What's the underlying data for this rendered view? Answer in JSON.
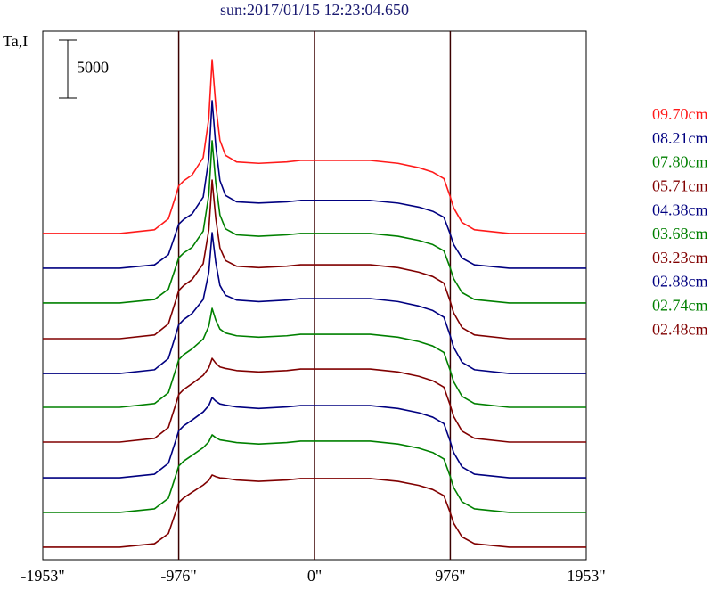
{
  "chart_data": {
    "type": "line",
    "title": "sun:2017/01/15 12:23:04.650",
    "y_label": "Ta,I",
    "scale_bar": 5000,
    "legend": "right",
    "grid": true,
    "xlim": [
      -1953,
      1953
    ],
    "ylim": [
      0,
      45600
    ],
    "xticks": [
      {
        "value": -1953,
        "label": "-1953\""
      },
      {
        "value": -976,
        "label": "-976\""
      },
      {
        "value": 0,
        "label": "0\""
      },
      {
        "value": 976,
        "label": "976\""
      },
      {
        "value": 1953,
        "label": "1953\""
      }
    ],
    "x": [
      -1953,
      -1400,
      -1150,
      -1050,
      -1000,
      -976,
      -940,
      -880,
      -800,
      -760,
      -736,
      -710,
      -680,
      -640,
      -560,
      -400,
      -200,
      -100,
      0,
      100,
      200,
      400,
      600,
      750,
      850,
      930,
      976,
      1000,
      1060,
      1150,
      1400,
      1953
    ],
    "series": [
      {
        "name": "09.70cm",
        "color": "#ff1a1a",
        "values": [
          28150,
          28150,
          28470,
          29410,
          31300,
          32250,
          32690,
          33190,
          34690,
          38050,
          43140,
          39230,
          36190,
          34890,
          34320,
          34200,
          34320,
          34450,
          34450,
          34450,
          34450,
          34450,
          34200,
          33820,
          33440,
          32880,
          31300,
          30360,
          29100,
          28470,
          28150,
          28150
        ]
      },
      {
        "name": "08.21cm",
        "color": "#000080",
        "values": [
          25150,
          25150,
          25440,
          26320,
          28080,
          28950,
          29360,
          29830,
          31280,
          34580,
          39610,
          35740,
          32720,
          31430,
          30880,
          30770,
          30880,
          31000,
          31000,
          31000,
          31000,
          31000,
          30770,
          30420,
          30060,
          29540,
          28080,
          27200,
          26030,
          25440,
          25150,
          25150
        ]
      },
      {
        "name": "07.80cm",
        "color": "#008000",
        "values": [
          22150,
          22150,
          22450,
          23350,
          25150,
          26050,
          26470,
          26950,
          28350,
          31450,
          36150,
          32550,
          29750,
          28550,
          28030,
          27910,
          28030,
          28150,
          28150,
          28150,
          28150,
          28150,
          27910,
          27550,
          27190,
          26650,
          25150,
          24250,
          23050,
          22450,
          22150,
          22150
        ]
      },
      {
        "name": "05.71cm",
        "color": "#800000",
        "values": [
          19070,
          19070,
          19390,
          20350,
          22260,
          23220,
          23660,
          24170,
          25540,
          28420,
          32750,
          29470,
          26910,
          25820,
          25320,
          25200,
          25320,
          25450,
          25450,
          25450,
          25450,
          25450,
          25200,
          24810,
          24430,
          23860,
          22260,
          21300,
          20030,
          19390,
          19070,
          19070
        ]
      },
      {
        "name": "04.38cm",
        "color": "#000080",
        "values": [
          16070,
          16070,
          16390,
          17360,
          19300,
          20270,
          20720,
          21240,
          22450,
          24770,
          28220,
          25660,
          23670,
          22820,
          22400,
          22270,
          22400,
          22530,
          22530,
          22530,
          22530,
          22530,
          22270,
          21880,
          21500,
          20920,
          19300,
          18330,
          17040,
          16390,
          16070,
          16070
        ]
      },
      {
        "name": "03.68cm",
        "color": "#008000",
        "values": [
          13150,
          13150,
          13470,
          14410,
          16300,
          17250,
          17690,
          18190,
          19040,
          20140,
          21680,
          20680,
          19900,
          19560,
          19320,
          19200,
          19320,
          19450,
          19450,
          19450,
          19450,
          19450,
          19200,
          18820,
          18440,
          17880,
          16300,
          15360,
          14100,
          13470,
          13150,
          13150
        ]
      },
      {
        "name": "03.23cm",
        "color": "#800000",
        "values": [
          10150,
          10150,
          10470,
          11410,
          13300,
          14250,
          14690,
          15190,
          15910,
          16550,
          17370,
          16960,
          16630,
          16500,
          16320,
          16200,
          16320,
          16450,
          16450,
          16450,
          16450,
          16450,
          16200,
          15820,
          15440,
          14880,
          13300,
          12360,
          11100,
          10470,
          10150,
          10150
        ]
      },
      {
        "name": "02.88cm",
        "color": "#000080",
        "values": [
          7070,
          7070,
          7380,
          8320,
          10190,
          11120,
          11560,
          12050,
          12750,
          13300,
          13990,
          13680,
          13440,
          13340,
          13180,
          13050,
          13180,
          13300,
          13300,
          13300,
          13300,
          13300,
          13050,
          12680,
          12300,
          11740,
          10190,
          9250,
          8010,
          7380,
          7070,
          7070
        ]
      },
      {
        "name": "02.74cm",
        "color": "#008000",
        "values": [
          4080,
          4080,
          4390,
          5310,
          7160,
          8080,
          8510,
          9000,
          9670,
          10170,
          10770,
          10530,
          10340,
          10260,
          10110,
          9980,
          10110,
          10230,
          10230,
          10230,
          10230,
          10230,
          9980,
          9620,
          9250,
          8690,
          7160,
          6230,
          5000,
          4390,
          4080,
          4080
        ]
      },
      {
        "name": "02.48cm",
        "color": "#800000",
        "values": [
          1080,
          1080,
          1380,
          2260,
          4040,
          4930,
          5340,
          5820,
          6440,
          6840,
          7310,
          7170,
          7060,
          7020,
          6880,
          6760,
          6880,
          7000,
          7000,
          7000,
          7000,
          7000,
          6760,
          6410,
          6050,
          5520,
          4040,
          3150,
          1970,
          1380,
          1080,
          1080
        ]
      }
    ]
  }
}
